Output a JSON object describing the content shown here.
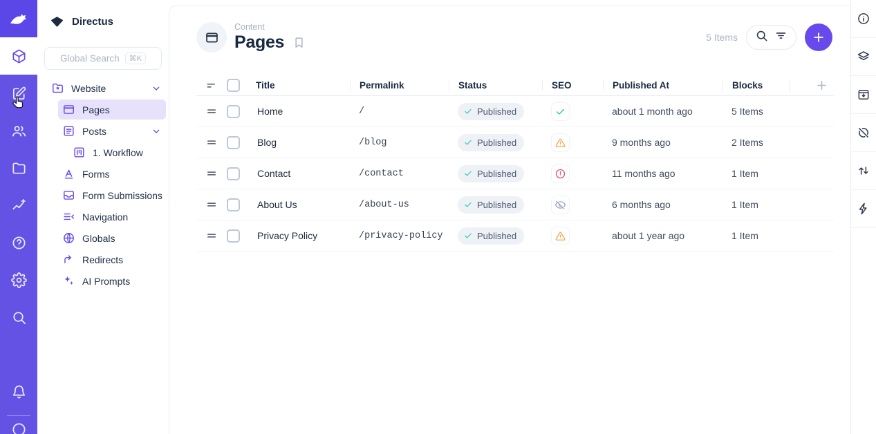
{
  "colors": {
    "module_bar": "#6452E4",
    "logo_tile": "#5B47E8",
    "accent": "#6849EC",
    "accent_soft": "#E7E1FC",
    "text_dark": "#172940",
    "border": "#E4EAF1",
    "green": "#2ECDA7",
    "orange": "#F9A544",
    "red": "#E35169"
  },
  "module_bar": {
    "modules": [
      {
        "name": "content",
        "icon": "box",
        "active": true
      },
      {
        "name": "visual-editor",
        "icon": "edit",
        "active": false
      },
      {
        "name": "users",
        "icon": "users",
        "active": false
      },
      {
        "name": "files",
        "icon": "folder",
        "active": false
      },
      {
        "name": "insights",
        "icon": "insights",
        "active": false
      },
      {
        "name": "help",
        "icon": "help",
        "active": false
      },
      {
        "name": "settings",
        "icon": "gear",
        "active": false
      },
      {
        "name": "search",
        "icon": "search",
        "active": false
      }
    ],
    "bottom": [
      {
        "name": "notifications",
        "icon": "bell"
      },
      {
        "name": "user-avatar",
        "icon": "avatar"
      }
    ]
  },
  "nav": {
    "project_name": "Directus",
    "search": {
      "placeholder": "Global Search",
      "shortcut": "⌘K"
    },
    "items": [
      {
        "label": "Website",
        "icon": "folder-star",
        "level": 0,
        "chevron": true,
        "active": false
      },
      {
        "label": "Pages",
        "icon": "window",
        "level": 1,
        "chevron": false,
        "active": true
      },
      {
        "label": "Posts",
        "icon": "article",
        "level": 1,
        "chevron": true,
        "active": false
      },
      {
        "label": "1. Workflow",
        "icon": "kanban",
        "level": 2,
        "chevron": false,
        "active": false
      },
      {
        "label": "Forms",
        "icon": "letter-a",
        "level": 1,
        "chevron": false,
        "active": false
      },
      {
        "label": "Form Submissions",
        "icon": "inbox",
        "level": 1,
        "chevron": false,
        "active": false
      },
      {
        "label": "Navigation",
        "icon": "menu-open",
        "level": 1,
        "chevron": false,
        "active": false
      },
      {
        "label": "Globals",
        "icon": "globe",
        "level": 1,
        "chevron": false,
        "active": false
      },
      {
        "label": "Redirects",
        "icon": "redirect-arrow",
        "level": 1,
        "chevron": false,
        "active": false
      },
      {
        "label": "AI Prompts",
        "icon": "sparkles",
        "level": 1,
        "chevron": false,
        "active": false
      }
    ]
  },
  "header": {
    "breadcrumb": "Content",
    "title": "Pages",
    "count": "5 Items"
  },
  "table": {
    "columns": [
      "Title",
      "Permalink",
      "Status",
      "SEO",
      "Published At",
      "Blocks"
    ],
    "rows": [
      {
        "title": "Home",
        "permalink": "/",
        "status": "Published",
        "seo": "ok",
        "published_at": "about 1 month ago",
        "blocks": "5 Items"
      },
      {
        "title": "Blog",
        "permalink": "/blog",
        "status": "Published",
        "seo": "warning",
        "published_at": "9 months ago",
        "blocks": "2 Items"
      },
      {
        "title": "Contact",
        "permalink": "/contact",
        "status": "Published",
        "seo": "error",
        "published_at": "11 months ago",
        "blocks": "1 Item"
      },
      {
        "title": "About Us",
        "permalink": "/about-us",
        "status": "Published",
        "seo": "hidden",
        "published_at": "6 months ago",
        "blocks": "1 Item"
      },
      {
        "title": "Privacy Policy",
        "permalink": "/privacy-policy",
        "status": "Published",
        "seo": "warning",
        "published_at": "about 1 year ago",
        "blocks": "1 Item"
      }
    ]
  },
  "right_sidebar": {
    "icons": [
      "info",
      "layers",
      "archive",
      "sync-disabled",
      "import-export",
      "bolt"
    ]
  }
}
